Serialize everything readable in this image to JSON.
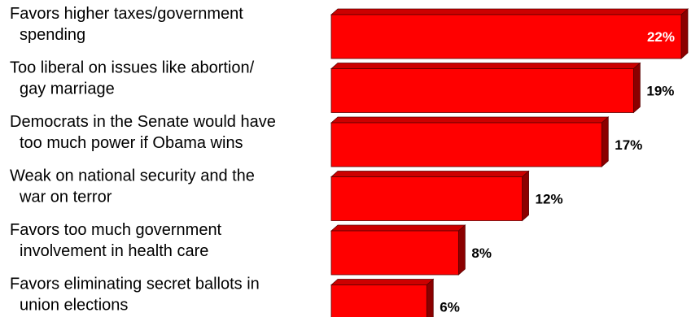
{
  "chart_data": {
    "type": "bar",
    "orientation": "horizontal",
    "categories": [
      [
        "Favors higher taxes/government",
        "spending"
      ],
      [
        "Too liberal on issues like abortion/",
        "gay marriage"
      ],
      [
        "Democrats in the Senate would have",
        "too much power if Obama wins"
      ],
      [
        "Weak on national security and the",
        "war on terror"
      ],
      [
        "Favors too much government",
        "involvement in health care"
      ],
      [
        "Favors eliminating secret ballots in",
        "union elections"
      ]
    ],
    "values": [
      22,
      19,
      17,
      12,
      8,
      6
    ],
    "value_labels": [
      "22%",
      "19%",
      "17%",
      "12%",
      "8%",
      "6%"
    ],
    "value_unit": "%",
    "xlim": [
      0,
      22
    ],
    "grid": false,
    "legend": "none",
    "title": "",
    "xlabel": "",
    "ylabel": ""
  },
  "colors": {
    "bar_front": "#ff0000",
    "bar_top": "#cc0000",
    "bar_side": "#8b0000",
    "bar_outline": "#5a0000",
    "label_inside": "#ffffff",
    "label_outside": "#000000"
  }
}
